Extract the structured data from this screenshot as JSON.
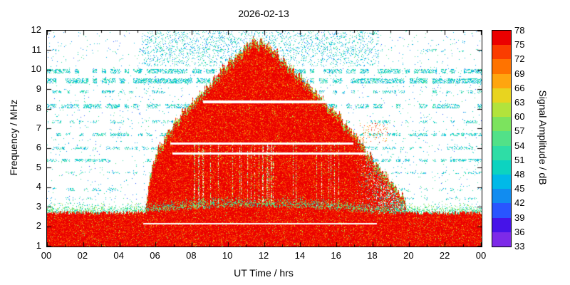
{
  "chart_data": {
    "type": "heatmap",
    "title": "2026-02-13",
    "xlabel": "UT Time / hrs",
    "ylabel": "Frequency / MHz",
    "colorbar_label": "Signal Amplitude / dB",
    "x_range": [
      0,
      24
    ],
    "x_ticks": [
      "00",
      "02",
      "04",
      "06",
      "08",
      "10",
      "12",
      "14",
      "16",
      "18",
      "20",
      "22",
      "00"
    ],
    "y_range": [
      1,
      12
    ],
    "y_ticks": [
      1,
      2,
      3,
      4,
      5,
      6,
      7,
      8,
      9,
      10,
      11,
      12
    ],
    "grid": false,
    "legend": "colorbar-right",
    "color_scale": {
      "min": 33,
      "max": 78,
      "step": 3,
      "tick_labels": [
        78,
        75,
        72,
        69,
        66,
        63,
        60,
        57,
        54,
        51,
        48,
        45,
        42,
        39,
        36,
        33
      ],
      "colors": [
        "#7d2ae8",
        "#4613e8",
        "#2955ff",
        "#118cf0",
        "#00b9e8",
        "#0cd3c0",
        "#2edda6",
        "#52e188",
        "#7ce35e",
        "#b2e33c",
        "#e8d41f",
        "#ffa50f",
        "#ff7300",
        "#fa3c00",
        "#eb0000"
      ]
    },
    "features": {
      "echo": {
        "envelope": [
          [
            5.4,
            3.0
          ],
          [
            5.7,
            4.6
          ],
          [
            6.0,
            5.8
          ],
          [
            6.5,
            6.6
          ],
          [
            7.0,
            7.3
          ],
          [
            8.0,
            8.4
          ],
          [
            9.0,
            9.3
          ],
          [
            10.0,
            10.4
          ],
          [
            10.8,
            11.1
          ],
          [
            11.5,
            11.6
          ],
          [
            12.0,
            11.4
          ],
          [
            12.5,
            11.0
          ],
          [
            13.0,
            10.6
          ],
          [
            14.0,
            9.6
          ],
          [
            15.0,
            8.7
          ],
          [
            16.0,
            7.8
          ],
          [
            17.0,
            6.7
          ],
          [
            18.0,
            5.4
          ],
          [
            19.0,
            4.3
          ],
          [
            19.8,
            3.3
          ]
        ],
        "amplitude_db": 76
      },
      "bottom_band": {
        "night_top": 2.7,
        "day_bulge": 0.35,
        "amplitude_db": 76
      },
      "restricted_bands": [
        {
          "f_low": 8.29,
          "f_high": 8.44,
          "t_start": 8.6,
          "t_end": 17.1
        },
        {
          "f_low": 6.2,
          "f_high": 6.3,
          "t_start": 6.8,
          "t_end": 16.9
        },
        {
          "f_low": 5.68,
          "f_high": 5.78,
          "t_start": 6.9,
          "t_end": 17.6
        },
        {
          "f_low": 2.1,
          "f_high": 2.2,
          "t_start": 5.3,
          "t_end": 18.2
        }
      ],
      "noise_bands": [
        {
          "f": 9.95,
          "w": 0.22,
          "d": 0.5,
          "patch": 0.7
        },
        {
          "f": 9.45,
          "w": 0.28,
          "d": 0.5,
          "patch": 0.75
        },
        {
          "f": 8.9,
          "w": 0.14,
          "d": 0.4,
          "patch": 0.5
        },
        {
          "f": 8.15,
          "w": 0.2,
          "d": 0.45,
          "patch": 0.6
        },
        {
          "f": 7.35,
          "w": 0.14,
          "d": 0.35,
          "patch": 0.5
        },
        {
          "f": 6.7,
          "w": 0.18,
          "d": 0.45,
          "patch": 0.65
        },
        {
          "f": 6.0,
          "w": 0.14,
          "d": 0.35,
          "patch": 0.5
        },
        {
          "f": 5.4,
          "w": 0.16,
          "d": 0.4,
          "patch": 0.55
        },
        {
          "f": 4.75,
          "w": 0.12,
          "d": 0.25,
          "patch": 0.4
        },
        {
          "f": 3.9,
          "w": 0.12,
          "d": 0.25,
          "patch": 0.4
        },
        {
          "f": 3.45,
          "w": 0.1,
          "d": 0.2,
          "patch": 0.35
        },
        {
          "f": 11.0,
          "w": 0.15,
          "d": 0.2,
          "patch": 0.3
        }
      ],
      "upper_speckle": {
        "t_start": 5.2,
        "t_end": 18.3,
        "f_low": 10.2,
        "f_high": 12.0,
        "density": 0.12
      },
      "orange_patch": {
        "t_start": 17.2,
        "t_end": 18.8,
        "f_low": 6.3,
        "f_high": 7.3,
        "density": 0.07
      },
      "texture": {
        "speckle_density": 0.013,
        "streak_prob": 0.17
      }
    }
  }
}
